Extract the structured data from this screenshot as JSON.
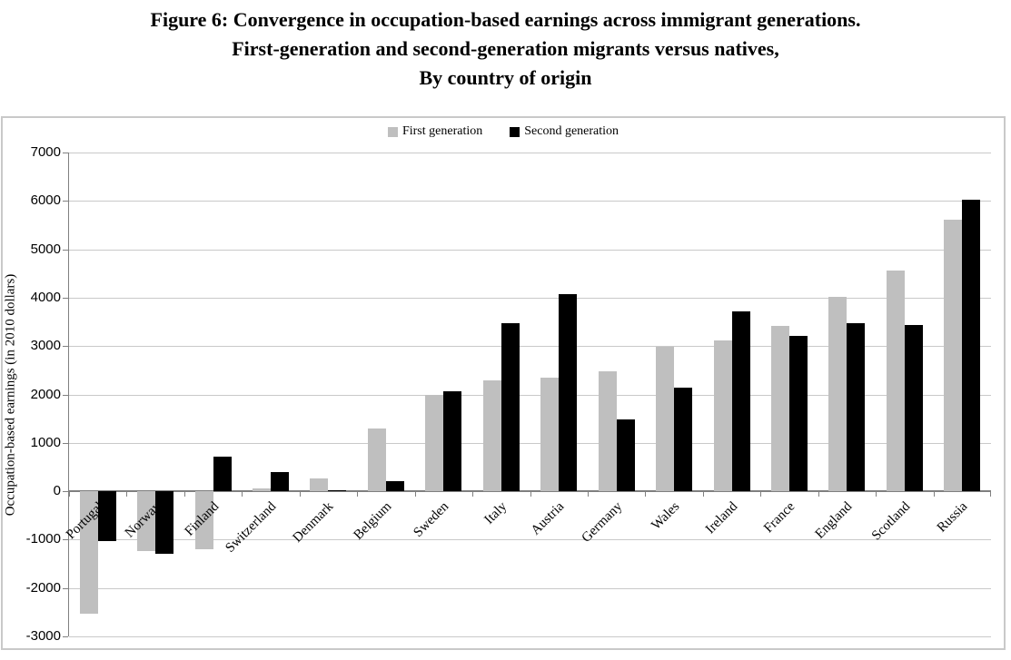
{
  "title": {
    "line1": "Figure 6: Convergence in occupation-based earnings across immigrant generations.",
    "line2": "First-generation and second-generation migrants versus natives,",
    "line3": "By country of origin"
  },
  "colors": {
    "first_generation": "#bfbfbf",
    "second_generation": "#000000",
    "gridline": "#c9c9c9",
    "axis": "#808080",
    "frame_border": "#c9c9c9"
  },
  "chart_data": {
    "type": "bar",
    "title": "Figure 6: Convergence in occupation-based earnings across immigrant generations. First-generation and second-generation migrants versus natives, By country of origin",
    "xlabel": "",
    "ylabel": "Occupation-based earnings (in 2010 dollars)",
    "ylim": [
      -3000,
      7000
    ],
    "ytick_interval": 1000,
    "grid": true,
    "legend_position": "top-center",
    "categories": [
      "Portugal",
      "Norway",
      "Finland",
      "Switzerland",
      "Denmark",
      "Belgium",
      "Sweden",
      "Italy",
      "Austria",
      "Germany",
      "Wales",
      "Ireland",
      "France",
      "England",
      "Scotland",
      "Russia"
    ],
    "series": [
      {
        "name": "First generation",
        "color": "#bfbfbf",
        "values": [
          -2530,
          -1240,
          -1190,
          60,
          270,
          1300,
          2000,
          2290,
          2340,
          2470,
          2980,
          3110,
          3410,
          4020,
          4570,
          5620
        ]
      },
      {
        "name": "Second generation",
        "color": "#000000",
        "values": [
          -1030,
          -1300,
          710,
          390,
          30,
          210,
          2060,
          3470,
          4080,
          1480,
          2150,
          3710,
          3210,
          3480,
          3440,
          6030
        ]
      }
    ]
  }
}
